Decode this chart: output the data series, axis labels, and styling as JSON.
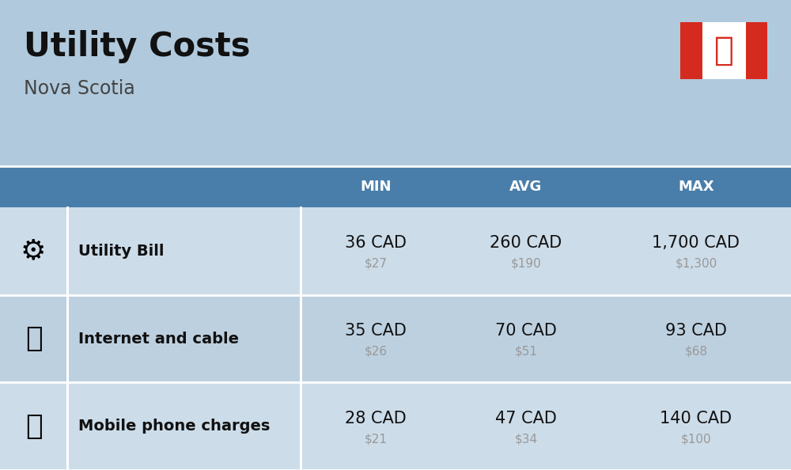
{
  "title": "Utility Costs",
  "subtitle": "Nova Scotia",
  "background_color": "#b0c9dc",
  "header_bg_color": "#4a7eaa",
  "header_text_color": "#ffffff",
  "row_bg_color_1": "#ccdce9",
  "row_bg_color_2": "#bdd0e0",
  "table_border_color": "#ffffff",
  "col_headers": [
    "MIN",
    "AVG",
    "MAX"
  ],
  "rows": [
    {
      "label": "Utility Bill",
      "min_cad": "36 CAD",
      "min_usd": "$27",
      "avg_cad": "260 CAD",
      "avg_usd": "$190",
      "max_cad": "1,700 CAD",
      "max_usd": "$1,300"
    },
    {
      "label": "Internet and cable",
      "min_cad": "35 CAD",
      "min_usd": "$26",
      "avg_cad": "70 CAD",
      "avg_usd": "$51",
      "max_cad": "93 CAD",
      "max_usd": "$68"
    },
    {
      "label": "Mobile phone charges",
      "min_cad": "28 CAD",
      "min_usd": "$21",
      "avg_cad": "47 CAD",
      "avg_usd": "$34",
      "max_cad": "140 CAD",
      "max_usd": "$100"
    }
  ],
  "title_fontsize": 30,
  "subtitle_fontsize": 17,
  "header_fontsize": 13,
  "cell_cad_fontsize": 15,
  "cell_usd_fontsize": 11,
  "label_fontsize": 14,
  "icon_fontsize": 26,
  "usd_color": "#999999",
  "label_color": "#111111",
  "cad_color": "#111111",
  "flag_red": "#d52b1e",
  "flag_white": "#ffffff",
  "icon_emojis": [
    "⚙️",
    "📡",
    "📱"
  ]
}
